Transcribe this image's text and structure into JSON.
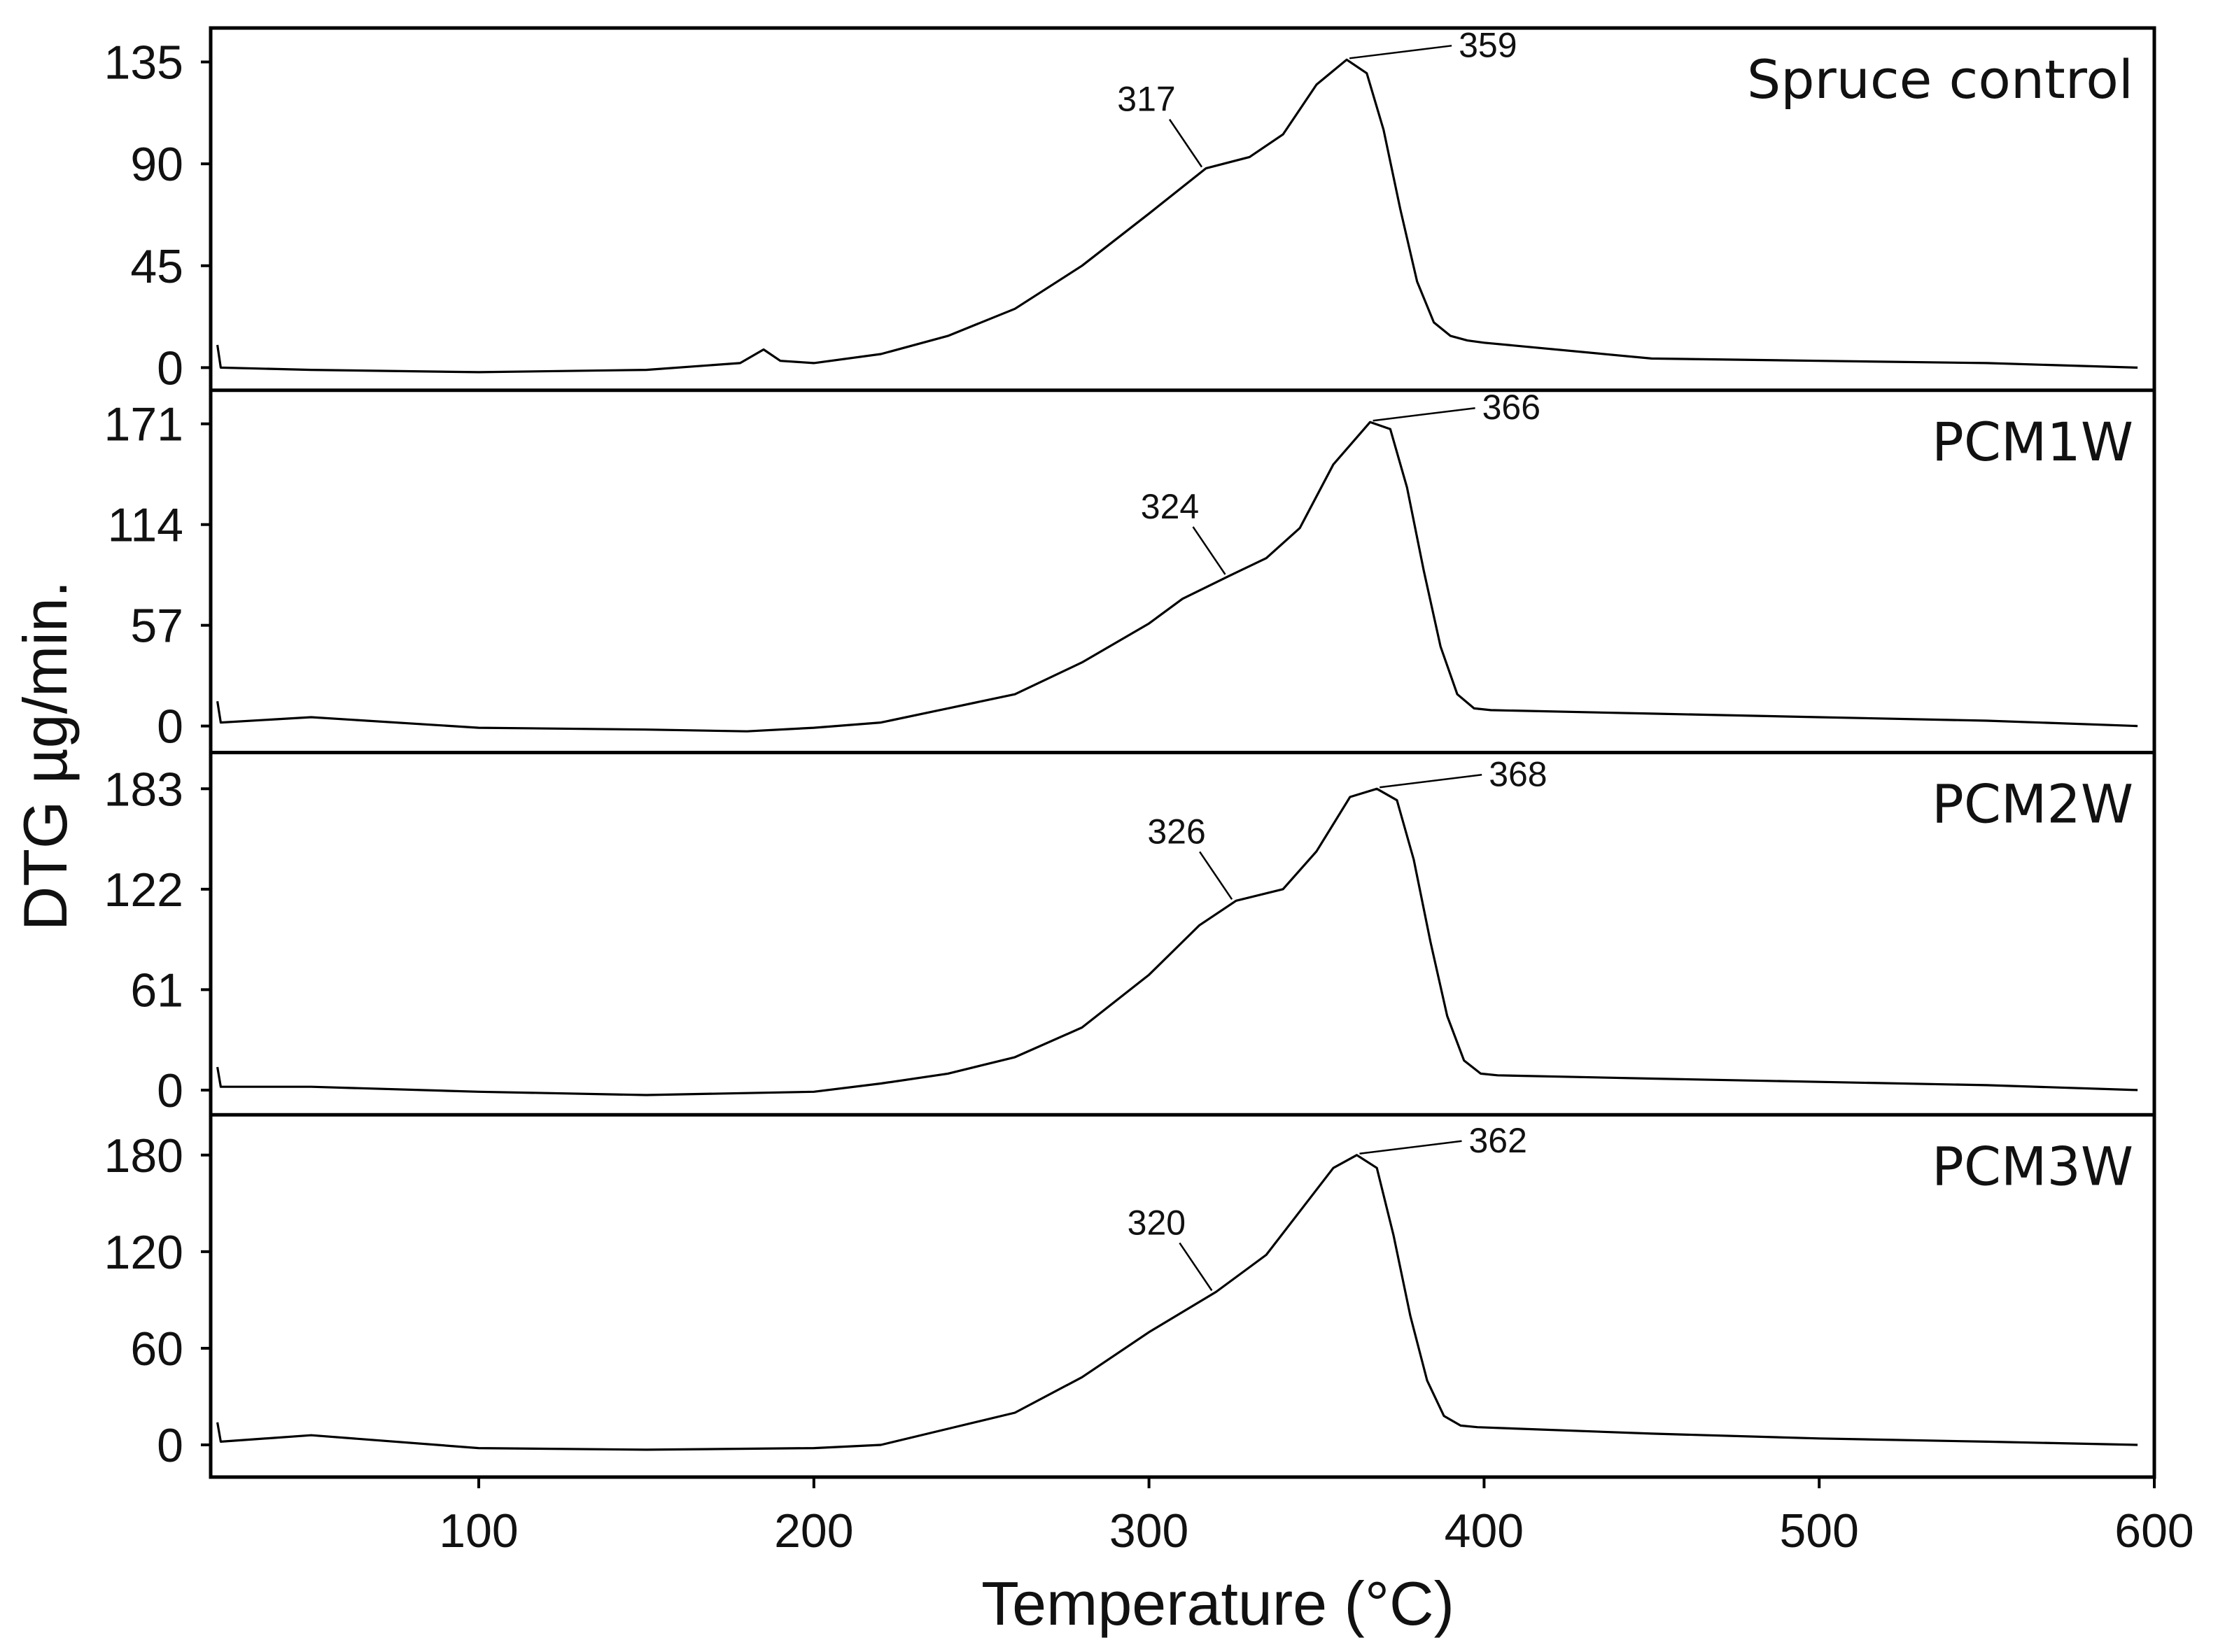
{
  "chart_data": {
    "type": "line",
    "ylabel": "DTG µg/min.",
    "xlabel": "Temperature (°C)",
    "xlim": [
      20,
      600
    ],
    "xticks": [
      100,
      200,
      300,
      400,
      500,
      600
    ],
    "xtick_labels": [
      "100",
      "200",
      "300",
      "400",
      "500",
      "600"
    ],
    "panels": [
      {
        "label": "Spruce control",
        "ylim": [
          -10,
          150
        ],
        "yticks": [
          0,
          45,
          90,
          135
        ],
        "ytick_labels": [
          "0",
          "45",
          "90",
          "135"
        ],
        "annotations": [
          {
            "text": "317",
            "x": 317
          },
          {
            "text": "359",
            "x": 359
          }
        ],
        "x": [
          22,
          23,
          50,
          100,
          150,
          178,
          185,
          190,
          200,
          220,
          240,
          260,
          280,
          300,
          317,
          330,
          340,
          350,
          359,
          365,
          370,
          375,
          380,
          385,
          390,
          395,
          400,
          450,
          500,
          550,
          595
        ],
        "y": [
          10,
          0,
          -1,
          -2,
          -1,
          2,
          8,
          3,
          2,
          6,
          14,
          26,
          45,
          68,
          88,
          93,
          103,
          125,
          136,
          130,
          105,
          70,
          38,
          20,
          14,
          12,
          11,
          4,
          3,
          2,
          0
        ]
      },
      {
        "label": "PCM1W",
        "ylim": [
          -15,
          190
        ],
        "yticks": [
          0,
          57,
          114,
          171
        ],
        "ytick_labels": [
          "0",
          "57",
          "114",
          "171"
        ],
        "annotations": [
          {
            "text": "324",
            "x": 324
          },
          {
            "text": "366",
            "x": 366
          }
        ],
        "x": [
          22,
          23,
          50,
          100,
          150,
          180,
          200,
          220,
          240,
          260,
          280,
          300,
          310,
          324,
          335,
          345,
          355,
          366,
          372,
          377,
          382,
          387,
          392,
          397,
          402,
          450,
          500,
          550,
          595
        ],
        "y": [
          14,
          2,
          5,
          -1,
          -2,
          -3,
          -1,
          2,
          10,
          18,
          36,
          58,
          72,
          85,
          95,
          112,
          148,
          172,
          168,
          135,
          88,
          45,
          18,
          10,
          9,
          7,
          5,
          3,
          0
        ]
      },
      {
        "label": "PCM2W",
        "ylim": [
          -15,
          205
        ],
        "yticks": [
          0,
          61,
          122,
          183
        ],
        "ytick_labels": [
          "0",
          "61",
          "122",
          "183"
        ],
        "annotations": [
          {
            "text": "326",
            "x": 326
          },
          {
            "text": "368",
            "x": 368
          }
        ],
        "x": [
          22,
          23,
          50,
          100,
          150,
          200,
          220,
          240,
          260,
          280,
          300,
          315,
          326,
          340,
          350,
          360,
          368,
          374,
          379,
          384,
          389,
          394,
          399,
          404,
          450,
          500,
          550,
          595
        ],
        "y": [
          14,
          2,
          2,
          -1,
          -3,
          -1,
          4,
          10,
          20,
          38,
          70,
          100,
          115,
          122,
          145,
          178,
          183,
          176,
          140,
          90,
          45,
          18,
          10,
          9,
          7,
          5,
          3,
          0
        ]
      },
      {
        "label": "PCM3W",
        "ylim": [
          -20,
          205
        ],
        "yticks": [
          0,
          60,
          120,
          180
        ],
        "ytick_labels": [
          "0",
          "60",
          "120",
          "180"
        ],
        "annotations": [
          {
            "text": "320",
            "x": 320
          },
          {
            "text": "362",
            "x": 362
          }
        ],
        "x": [
          22,
          23,
          50,
          100,
          150,
          200,
          220,
          240,
          260,
          280,
          300,
          320,
          335,
          345,
          355,
          362,
          368,
          373,
          378,
          383,
          388,
          393,
          398,
          450,
          500,
          550,
          595
        ],
        "y": [
          14,
          2,
          6,
          -2,
          -3,
          -2,
          0,
          10,
          20,
          42,
          70,
          95,
          118,
          145,
          172,
          180,
          172,
          130,
          80,
          40,
          18,
          12,
          11,
          7,
          4,
          2,
          0
        ]
      }
    ]
  }
}
